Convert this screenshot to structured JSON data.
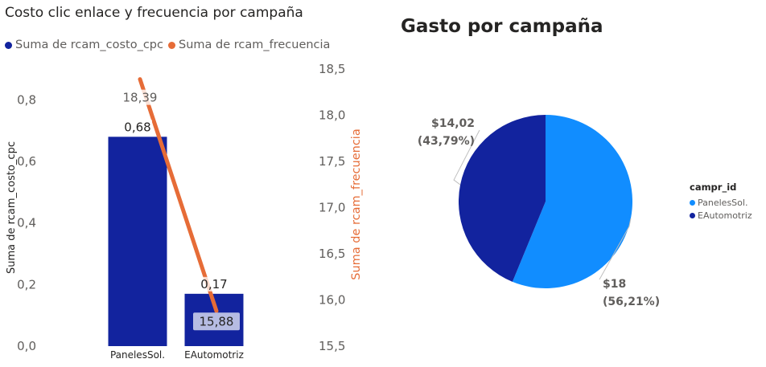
{
  "colors": {
    "bar": "#12239E",
    "line": "#E66C37",
    "pie_a": "#118DFF",
    "pie_b": "#12239E"
  },
  "chart_data": [
    {
      "type": "bar",
      "title": "Costo clic enlace y frecuencia por campaña",
      "categories": [
        "PanelesSol.",
        "EAutomotriz"
      ],
      "series": [
        {
          "name": "Suma de rcam_costo_cpc",
          "type": "bar",
          "axis": "left",
          "values": [
            0.68,
            0.17
          ],
          "data_labels": [
            "0,68",
            "0,17"
          ]
        },
        {
          "name": "Suma de rcam_frecuencia",
          "type": "line",
          "axis": "right",
          "values": [
            18.39,
            15.88
          ],
          "data_labels": [
            "18,39",
            "15,88"
          ]
        }
      ],
      "ylabel": "Suma de rcam_costo_cpc",
      "y2label": "Suma de rcam_frecuencia",
      "ylim": [
        0,
        0.9
      ],
      "y2lim": [
        15.5,
        18.5
      ],
      "yticks": [
        "0,0",
        "0,2",
        "0,4",
        "0,6",
        "0,8"
      ],
      "y2ticks": [
        "15,5",
        "16,0",
        "16,5",
        "17,0",
        "17,5",
        "18,0",
        "18,5"
      ],
      "legend_position": "top-left"
    },
    {
      "type": "pie",
      "title": "Gasto por campaña",
      "legend_title": "campr_id",
      "legend_position": "right",
      "slices": [
        {
          "label": "PanelesSol.",
          "value": 18,
          "percent": 56.21,
          "label_value": "$18",
          "label_percent": "(56,21%)"
        },
        {
          "label": "EAutomotriz",
          "value": 14.02,
          "percent": 43.79,
          "label_value": "$14,02",
          "label_percent": "(43,79%)"
        }
      ]
    }
  ]
}
